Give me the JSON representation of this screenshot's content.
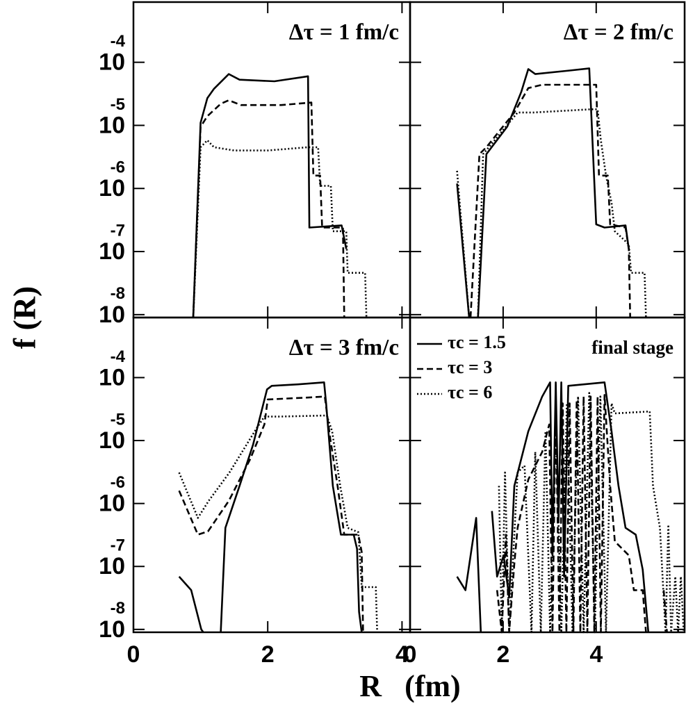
{
  "ylabel": "f (R)",
  "xlabel": "R   (fm)",
  "chart_data": [
    {
      "type": "line",
      "title": "Δτ = 1 fm/c",
      "log_y": true,
      "xlim": [
        0,
        4.12
      ],
      "ylim": [
        9e-09,
        0.0009
      ],
      "yticks": [
        {
          "value": 0.0001,
          "label": "10",
          "exponent": "-4"
        },
        {
          "value": 1e-05,
          "label": "10",
          "exponent": "-5"
        },
        {
          "value": 1e-06,
          "label": "10",
          "exponent": "-6"
        },
        {
          "value": 1e-07,
          "label": "10",
          "exponent": "-7"
        },
        {
          "value": 1e-08,
          "label": "10",
          "exponent": "-8"
        }
      ],
      "series": [
        {
          "color": "#000000",
          "style": "solid",
          "x": [
            0.89,
            1.0,
            1.1,
            1.2,
            1.42,
            1.58,
            2.1,
            2.6,
            2.62,
            3.1,
            3.17
          ],
          "values": [
            9e-09,
            1.1e-05,
            2.7e-05,
            3.8e-05,
            6.5e-05,
            5.3e-05,
            5e-05,
            6e-05,
            2.4e-07,
            2.6e-07,
            1.1e-07
          ]
        },
        {
          "color": "#000000",
          "style": "dashed",
          "x": [
            0.89,
            1.0,
            1.1,
            1.3,
            1.42,
            1.6,
            2.2,
            2.65,
            2.68,
            2.78,
            2.81,
            3.12,
            3.14
          ],
          "values": [
            9e-09,
            9.5e-06,
            1.4e-05,
            2.2e-05,
            2.5e-05,
            2.1e-05,
            2.1e-05,
            2.3e-05,
            1.6e-06,
            1.6e-06,
            2.4e-07,
            2.4e-07,
            9e-09
          ]
        },
        {
          "color": "#000000",
          "style": "dotted",
          "x": [
            0.89,
            1.0,
            1.1,
            1.2,
            1.5,
            2.0,
            2.6,
            2.75,
            2.78,
            2.94,
            2.97,
            3.17,
            3.19,
            3.45,
            3.47
          ],
          "values": [
            9e-09,
            4.5e-06,
            5.8e-06,
            4.5e-06,
            4e-06,
            4e-06,
            4.5e-06,
            4.5e-06,
            1.1e-06,
            1.1e-06,
            2.1e-07,
            2.1e-07,
            4.6e-08,
            4.6e-08,
            9e-09
          ]
        }
      ]
    },
    {
      "type": "line",
      "title": "Δτ = 2 fm/c",
      "log_y": true,
      "xlim": [
        0,
        5.9
      ],
      "ylim": [
        9e-09,
        0.0009
      ],
      "series": [
        {
          "color": "#000000",
          "style": "solid",
          "x": [
            1.01,
            1.27,
            1.36,
            1.46,
            1.64,
            2.09,
            2.39,
            2.54,
            2.69,
            3.43,
            3.85,
            4.0,
            4.18,
            4.63,
            4.7
          ],
          "values": [
            1.2e-06,
            9e-09,
            null,
            9e-09,
            3.5e-06,
            9.6e-06,
            3.4e-05,
            7.8e-05,
            6.5e-05,
            7.4e-05,
            8e-05,
            2.7e-07,
            2.4e-07,
            2.6e-07,
            1.1e-07
          ]
        },
        {
          "color": "#000000",
          "style": "dashed",
          "x": [
            1.3,
            1.49,
            1.64,
            2.24,
            2.54,
            2.84,
            3.88,
            4.0,
            4.06,
            4.25,
            4.3,
            4.63,
            4.7,
            4.73
          ],
          "values": [
            9e-09,
            3.5e-06,
            4.5e-06,
            1.6e-05,
            3.9e-05,
            4.4e-05,
            4.4e-05,
            4.4e-05,
            1.6e-06,
            1.6e-06,
            2.7e-07,
            2.4e-07,
            1.1e-07,
            9e-09
          ]
        },
        {
          "color": "#000000",
          "style": "dotted",
          "x": [
            1.01,
            1.27,
            1.36,
            1.46,
            1.57,
            2.31,
            2.66,
            3.88,
            4.03,
            4.1,
            4.21,
            4.33,
            4.4,
            4.7,
            4.75,
            5.04,
            5.07
          ],
          "values": [
            1.9e-06,
            9e-09,
            null,
            9e-09,
            3.5e-06,
            1.6e-05,
            1.6e-05,
            1.8e-05,
            1.8e-05,
            5.8e-06,
            1.6e-06,
            5.9e-07,
            2.1e-07,
            1.3e-07,
            4.6e-08,
            4.6e-08,
            9e-09
          ]
        }
      ]
    },
    {
      "type": "line",
      "title": "Δτ = 3 fm/c",
      "log_y": true,
      "xlim": [
        0,
        4.12
      ],
      "ylim": [
        9e-09,
        0.0009
      ],
      "xticks": [
        0,
        2,
        4
      ],
      "yticks": [
        {
          "value": 0.0001,
          "label": "10",
          "exponent": "-4"
        },
        {
          "value": 1e-05,
          "label": "10",
          "exponent": "-5"
        },
        {
          "value": 1e-06,
          "label": "10",
          "exponent": "-6"
        },
        {
          "value": 1e-07,
          "label": "10",
          "exponent": "-7"
        },
        {
          "value": 1e-08,
          "label": "10",
          "exponent": "-8"
        }
      ],
      "series": [
        {
          "color": "#000000",
          "style": "solid",
          "x": [
            0.68,
            0.86,
            1.01,
            1.04,
            1.17,
            1.3,
            1.37,
            1.58,
            1.78,
            1.99,
            2.06,
            2.45,
            2.84,
            2.87,
            2.97,
            3.09,
            3.28,
            3.33,
            3.36,
            3.4
          ],
          "values": [
            6.9e-08,
            4.2e-08,
            1e-08,
            9e-09,
            null,
            9e-09,
            4.1e-07,
            1.9e-06,
            8.5e-06,
            6.5e-05,
            7.4e-05,
            7.8e-05,
            8.4e-05,
            3.9e-05,
            1.9e-06,
            3.2e-07,
            3.2e-07,
            1.9e-07,
            1.9e-08,
            9e-09
          ]
        },
        {
          "color": "#000000",
          "style": "dashed",
          "x": [
            0.68,
            0.96,
            1.11,
            1.42,
            1.74,
            1.95,
            2.0,
            2.57,
            2.85,
            2.93,
            3.04,
            3.14,
            3.35,
            3.4,
            3.42
          ],
          "values": [
            1.6e-06,
            3.2e-07,
            3.6e-07,
            1.1e-06,
            5.1e-06,
            1.8e-05,
            4.5e-05,
            4.8e-05,
            5e-05,
            1.1e-05,
            1.9e-06,
            3.2e-07,
            3.2e-07,
            1.7e-07,
            9e-09
          ]
        },
        {
          "color": "#000000",
          "style": "dotted",
          "x": [
            0.68,
            0.96,
            1.12,
            1.43,
            1.84,
            1.95,
            2.16,
            2.88,
            2.96,
            3.08,
            3.19,
            3.35,
            3.4,
            3.61,
            3.63
          ],
          "values": [
            3.1e-06,
            5.9e-07,
            1.1e-06,
            3.1e-06,
            1.6e-05,
            2.4e-05,
            2.4e-05,
            2.5e-05,
            1.4e-05,
            1.9e-06,
            4.1e-07,
            3.5e-07,
            4.7e-08,
            4.7e-08,
            9e-09
          ]
        }
      ]
    },
    {
      "type": "line",
      "title": "final stage",
      "log_y": true,
      "xlim": [
        0,
        5.9
      ],
      "ylim": [
        9e-09,
        0.0009
      ],
      "xticks": [
        0,
        2,
        4
      ],
      "legend": "upper left",
      "series": [
        {
          "name": "τc = 1.5",
          "color": "#000000",
          "style": "solid",
          "x": [
            1.01,
            1.19,
            1.42,
            1.52,
            1.64,
            1.76,
            1.87,
            2.01,
            2.13,
            2.24,
            2.54,
            2.84,
            3.01,
            3.06,
            3.13,
            3.19,
            3.25,
            3.31,
            3.4,
            4.18,
            4.33,
            4.48,
            4.63,
            4.85,
            5.0,
            5.12
          ],
          "values": [
            6.9e-08,
            4.2e-08,
            5.9e-07,
            9e-09,
            null,
            7.6e-07,
            6.9e-08,
            1.5e-07,
            3.2e-08,
            1.9e-06,
            1.4e-05,
            5e-05,
            8.4e-05,
            1.5e-07,
            8.4e-05,
            5.2e-07,
            8.4e-05,
            6.9e-08,
            7.4e-05,
            8.4e-05,
            1.4e-05,
            1.9e-06,
            4.1e-07,
            3.2e-07,
            8.9e-08,
            9e-09
          ]
        },
        {
          "name": "τc = 3",
          "color": "#000000",
          "style": "dashed",
          "x": [
            1.87,
            1.97,
            2.06,
            2.13,
            2.24,
            2.31,
            2.54,
            2.84,
            2.99,
            3.06,
            3.13,
            3.21,
            3.28,
            3.36,
            3.43,
            3.51,
            3.58,
            3.66,
            3.73,
            3.81,
            3.88,
            3.96,
            4.03,
            4.1,
            4.18,
            4.3,
            4.4,
            4.7,
            4.81,
            5.0,
            5.07,
            5.3,
            5.45,
            5.52
          ],
          "values": [
            4.2e-08,
            9e-09,
            3.2e-07,
            9e-09,
            1.1e-07,
            4.1e-07,
            2.4e-06,
            6.6e-06,
            1.8e-05,
            9e-09,
            3.9e-05,
            9e-09,
            3.9e-05,
            9e-09,
            3.9e-05,
            9e-09,
            4.4e-05,
            9e-09,
            5e-05,
            9e-09,
            5e-05,
            9e-09,
            5e-05,
            9e-09,
            5.3e-05,
            1.9e-06,
            2.5e-07,
            1.5e-07,
            4.2e-08,
            4.2e-08,
            9e-09,
            null,
            4.2e-08,
            9e-09
          ]
        },
        {
          "name": "τc = 6",
          "color": "#000000",
          "style": "dotted",
          "x": [
            1.91,
            1.97,
            2.04,
            2.13,
            2.31,
            2.46,
            2.61,
            2.69,
            2.81,
            2.91,
            3.01,
            3.13,
            3.25,
            3.37,
            3.49,
            3.61,
            3.73,
            3.85,
            3.97,
            4.09,
            4.21,
            4.33,
            4.4,
            5.15,
            5.22,
            5.37,
            5.49,
            5.55,
            5.61,
            5.7,
            5.76,
            5.82,
            5.88
          ],
          "values": [
            1.9e-06,
            9e-09,
            3.1e-06,
            9e-09,
            3.1e-06,
            4e-06,
            9e-09,
            6.6e-06,
            9e-09,
            1.4e-05,
            9e-09,
            2.4e-05,
            9e-09,
            3.9e-05,
            9e-09,
            5e-05,
            9e-09,
            5.7e-05,
            9e-09,
            5e-05,
            9e-09,
            3.9e-05,
            2.7e-05,
            2.9e-05,
            1.9e-06,
            4.1e-07,
            9e-09,
            4.6e-07,
            9e-09,
            6.9e-08,
            9e-09,
            6.9e-08,
            9e-09
          ]
        }
      ]
    }
  ]
}
